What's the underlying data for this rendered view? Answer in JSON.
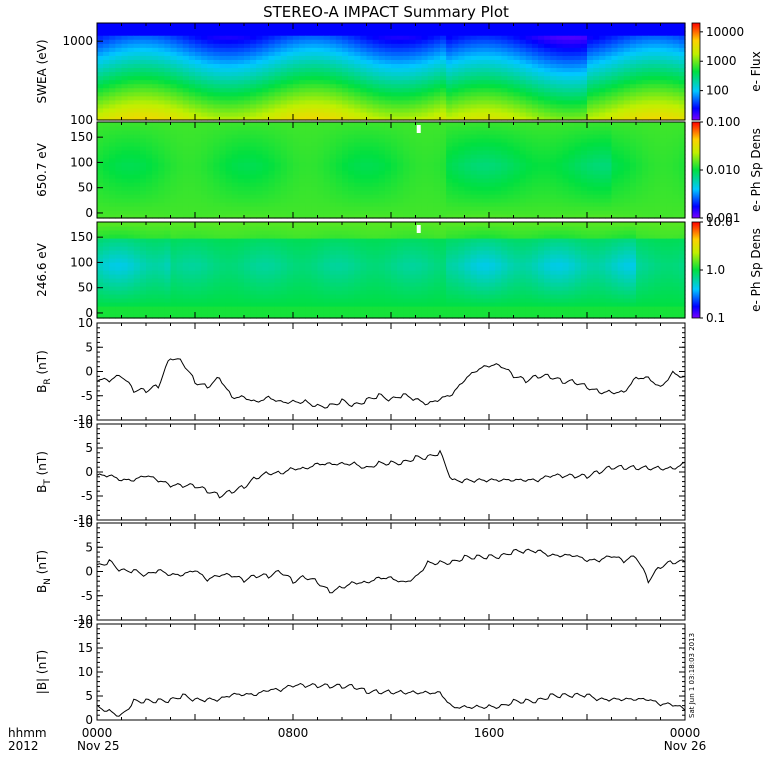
{
  "title": "STEREO-A IMPACT Summary Plot",
  "footer": {
    "fmt_label": "hhmm",
    "year": "2012",
    "date_start": "Nov 25",
    "date_end": "Nov 26",
    "x_ticks": [
      "0000",
      "0800",
      "1600",
      "0000"
    ]
  },
  "stamp": "Sat Jun 1 03:18:03 2013",
  "chart_data": [
    {
      "type": "heatmap",
      "ylabel": "SWEA (eV)",
      "yscale": "log",
      "ylim": [
        100,
        1700
      ],
      "yticks": [
        "100",
        "1000"
      ],
      "colorbar": {
        "label": "e- Flux",
        "scale": "log",
        "range": [
          10,
          20000
        ],
        "ticks": [
          "100",
          "1000",
          "10000"
        ]
      }
    },
    {
      "type": "heatmap",
      "ylabel": "650.7 eV",
      "ylim": [
        -10,
        180
      ],
      "yticks": [
        "0",
        "50",
        "100",
        "150"
      ],
      "colorbar": {
        "label": "e- Ph Sp Dens",
        "scale": "log",
        "range": [
          0.001,
          0.1
        ],
        "ticks": [
          "0.001",
          "0.010",
          "0.100"
        ]
      }
    },
    {
      "type": "heatmap",
      "ylabel": "246.6 eV",
      "ylim": [
        -10,
        180
      ],
      "yticks": [
        "0",
        "50",
        "100",
        "150"
      ],
      "colorbar": {
        "label": "e- Ph Sp Dens",
        "scale": "log",
        "range": [
          0.1,
          10
        ],
        "ticks": [
          "0.1",
          "1.0",
          "10.0"
        ]
      }
    },
    {
      "type": "line",
      "ylabel": "B_R (nT)",
      "ylim": [
        -10,
        10
      ],
      "yticks": [
        "-10",
        "-5",
        "0",
        "5",
        "10"
      ],
      "x_hours": [
        0,
        0.5,
        1,
        1.5,
        2,
        2.5,
        3,
        3.5,
        4,
        4.5,
        5,
        5.5,
        6,
        6.5,
        7,
        7.5,
        8,
        8.5,
        9,
        9.5,
        10,
        10.5,
        11,
        11.5,
        12,
        12.5,
        13,
        13.5,
        14,
        14.5,
        15,
        15.5,
        16,
        16.5,
        17,
        17.5,
        18,
        18.5,
        19,
        19.5,
        20,
        20.5,
        21,
        21.5,
        22,
        22.5,
        23,
        23.5,
        24
      ],
      "values": [
        -2,
        -2,
        -1,
        -4,
        -4,
        -3,
        3,
        2,
        -2,
        -3,
        -1,
        -5,
        -5,
        -6,
        -5,
        -6,
        -6,
        -6,
        -7,
        -7,
        -6,
        -7,
        -6,
        -5,
        -6,
        -5,
        -6,
        -7,
        -6,
        -5,
        -2,
        0,
        1,
        1,
        -1,
        -2,
        -1,
        -1,
        -2,
        -2,
        -3,
        -4,
        -4,
        -4,
        -1,
        -1,
        -3,
        0,
        -1
      ]
    },
    {
      "type": "line",
      "ylabel": "B_T (nT)",
      "ylim": [
        -10,
        10
      ],
      "yticks": [
        "-10",
        "-5",
        "0",
        "5",
        "10"
      ],
      "x_hours": [
        0,
        0.5,
        1,
        1.5,
        2,
        2.5,
        3,
        3.5,
        4,
        4.5,
        5,
        5.5,
        6,
        6.5,
        7,
        7.5,
        8,
        8.5,
        9,
        9.5,
        10,
        10.5,
        11,
        11.5,
        12,
        12.5,
        13,
        13.5,
        14,
        14.5,
        15,
        15.5,
        16,
        16.5,
        17,
        17.5,
        18,
        18.5,
        19,
        19.5,
        20,
        20.5,
        21,
        21.5,
        22,
        22.5,
        23,
        23.5,
        24
      ],
      "values": [
        -1,
        -1,
        -2,
        -2,
        -1,
        -2,
        -3,
        -3,
        -3,
        -4,
        -5,
        -4,
        -3,
        -1,
        0,
        0,
        1,
        1,
        2,
        2,
        2,
        2,
        1,
        2,
        2,
        2,
        3,
        3,
        4,
        -2,
        -2,
        -2,
        -2,
        -2,
        -2,
        -2,
        -2,
        -1,
        -1,
        -1,
        -1,
        0,
        1,
        1,
        1,
        1,
        1,
        1,
        2
      ]
    },
    {
      "type": "line",
      "ylabel": "B_N (nT)",
      "ylim": [
        -10,
        10
      ],
      "yticks": [
        "-10",
        "-5",
        "0",
        "5",
        "10"
      ],
      "x_hours": [
        0,
        0.5,
        1,
        1.5,
        2,
        2.5,
        3,
        3.5,
        4,
        4.5,
        5,
        5.5,
        6,
        6.5,
        7,
        7.5,
        8,
        8.5,
        9,
        9.5,
        10,
        10.5,
        11,
        11.5,
        12,
        12.5,
        13,
        13.5,
        14,
        14.5,
        15,
        15.5,
        16,
        16.5,
        17,
        17.5,
        18,
        18.5,
        19,
        19.5,
        20,
        20.5,
        21,
        21.5,
        22,
        22.5,
        23,
        23.5,
        24
      ],
      "values": [
        1,
        2,
        0,
        0,
        -1,
        0,
        -1,
        -1,
        0,
        -2,
        -1,
        -1,
        -2,
        -1,
        -1,
        0,
        -2,
        -1,
        -2,
        -4,
        -3,
        -2,
        -2,
        -1,
        -1,
        -2,
        -1,
        2,
        2,
        2,
        3,
        3,
        3,
        3,
        4,
        4,
        4,
        3,
        3,
        3,
        2,
        2,
        3,
        2,
        3,
        -2,
        1,
        2,
        2
      ]
    },
    {
      "type": "line",
      "ylabel": "|B| (nT)",
      "ylim": [
        0,
        20
      ],
      "yticks": [
        "0",
        "5",
        "10",
        "15",
        "20"
      ],
      "x_hours": [
        0,
        0.5,
        1,
        1.5,
        2,
        2.5,
        3,
        3.5,
        4,
        4.5,
        5,
        5.5,
        6,
        6.5,
        7,
        7.5,
        8,
        8.5,
        9,
        9.5,
        10,
        10.5,
        11,
        11.5,
        12,
        12.5,
        13,
        13.5,
        14,
        14.5,
        15,
        15.5,
        16,
        16.5,
        17,
        17.5,
        18,
        18.5,
        19,
        19.5,
        20,
        20.5,
        21,
        21.5,
        22,
        22.5,
        23,
        23.5,
        24
      ],
      "values": [
        3,
        2,
        1,
        4,
        4,
        4,
        4,
        5,
        4,
        4,
        4,
        5,
        5,
        5,
        6,
        6,
        7,
        7,
        7,
        7,
        7,
        7,
        6,
        6,
        6,
        6,
        6,
        6,
        6,
        3,
        3,
        3,
        3,
        3,
        4,
        4,
        4,
        5,
        5,
        5,
        5,
        4,
        4,
        4,
        4,
        4,
        3,
        3,
        2
      ]
    }
  ]
}
